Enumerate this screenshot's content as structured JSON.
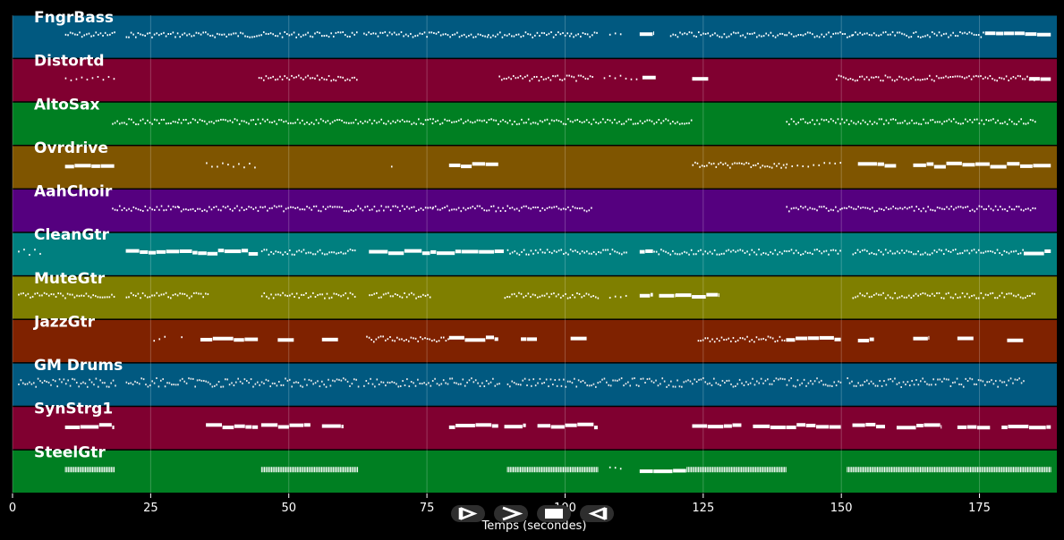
{
  "chart_data": {
    "type": "piano-roll",
    "xlabel": "Temps (secondes)",
    "xlim": [
      0,
      189
    ],
    "x_ticks": [
      0,
      25,
      50,
      75,
      100,
      125,
      150,
      175
    ],
    "grid": true,
    "tracks": [
      {
        "name": "FngrBass",
        "color": "#015980",
        "segments": [
          [
            9.5,
            18.5,
            "dense"
          ],
          [
            20.5,
            44.5,
            "dense"
          ],
          [
            44.5,
            62.5,
            "dense"
          ],
          [
            63.5,
            86,
            "dense"
          ],
          [
            86,
            101,
            "dense"
          ],
          [
            101,
            106,
            "dense"
          ],
          [
            108,
            110,
            "sparse"
          ],
          [
            113.5,
            116,
            "block"
          ],
          [
            119,
            140,
            "dense"
          ],
          [
            140,
            152,
            "dense"
          ],
          [
            152,
            176,
            "dense"
          ],
          [
            176,
            188,
            "block"
          ]
        ]
      },
      {
        "name": "Distortd",
        "color": "#800030",
        "segments": [
          [
            9.5,
            18.5,
            "sparse"
          ],
          [
            44.5,
            62.5,
            "dense"
          ],
          [
            88,
            105,
            "dense"
          ],
          [
            107,
            113,
            "sparse"
          ],
          [
            114,
            116.5,
            "block"
          ],
          [
            123,
            126,
            "block"
          ],
          [
            149,
            185,
            "dense"
          ],
          [
            184,
            188,
            "block"
          ]
        ]
      },
      {
        "name": "AltoSax",
        "color": "#007f22",
        "segments": [
          [
            18,
            30,
            "dense"
          ],
          [
            30,
            62,
            "dense"
          ],
          [
            62,
            76,
            "dense"
          ],
          [
            76,
            123,
            "dense"
          ],
          [
            140,
            150,
            "dense"
          ],
          [
            150,
            185,
            "dense"
          ]
        ]
      },
      {
        "name": "Ovrdrive",
        "color": "#7f5500",
        "segments": [
          [
            9.5,
            18.5,
            "block"
          ],
          [
            35,
            44.5,
            "sparse"
          ],
          [
            68.5,
            69,
            "sparse"
          ],
          [
            79,
            88,
            "block"
          ],
          [
            123,
            140,
            "dense"
          ],
          [
            140,
            150,
            "sparse"
          ],
          [
            153,
            160,
            "block"
          ],
          [
            163,
            169,
            "block"
          ],
          [
            169,
            188,
            "block"
          ]
        ]
      },
      {
        "name": "AahChoir",
        "color": "#55007f",
        "segments": [
          [
            18,
            30,
            "dense"
          ],
          [
            30,
            62,
            "dense"
          ],
          [
            62,
            76,
            "dense"
          ],
          [
            76,
            105,
            "dense"
          ],
          [
            140,
            150,
            "dense"
          ],
          [
            150,
            185,
            "dense"
          ]
        ]
      },
      {
        "name": "CleanGtr",
        "color": "#007f7f",
        "segments": [
          [
            1,
            5,
            "sparse"
          ],
          [
            20.5,
            44.5,
            "block"
          ],
          [
            45,
            62,
            "dense"
          ],
          [
            64.5,
            89,
            "block"
          ],
          [
            89.5,
            111,
            "dense"
          ],
          [
            113.5,
            116,
            "block"
          ],
          [
            116,
            150,
            "dense"
          ],
          [
            152,
            183,
            "dense"
          ],
          [
            183,
            188,
            "block"
          ]
        ]
      },
      {
        "name": "MuteGtr",
        "color": "#7f7f00",
        "segments": [
          [
            1,
            18.5,
            "dense"
          ],
          [
            20.5,
            35.5,
            "dense"
          ],
          [
            45,
            62,
            "dense"
          ],
          [
            64.5,
            75.5,
            "dense"
          ],
          [
            89,
            106,
            "dense"
          ],
          [
            108,
            111,
            "sparse"
          ],
          [
            113.5,
            116,
            "block"
          ],
          [
            117,
            120,
            "block"
          ],
          [
            120,
            128,
            "block"
          ],
          [
            152,
            185,
            "dense"
          ]
        ]
      },
      {
        "name": "JazzGtr",
        "color": "#7f2200",
        "segments": [
          [
            25.5,
            28,
            "sparse"
          ],
          [
            30.5,
            31,
            "sparse"
          ],
          [
            34,
            44.5,
            "block"
          ],
          [
            48,
            51,
            "block"
          ],
          [
            56,
            59,
            "block"
          ],
          [
            64,
            79,
            "dense"
          ],
          [
            79,
            88,
            "block"
          ],
          [
            92,
            95,
            "block"
          ],
          [
            101,
            104,
            "block"
          ],
          [
            124,
            140,
            "dense"
          ],
          [
            140,
            150,
            "block"
          ],
          [
            153,
            156,
            "block"
          ],
          [
            163,
            166,
            "block"
          ],
          [
            171,
            174,
            "block"
          ],
          [
            180,
            183,
            "block"
          ]
        ]
      },
      {
        "name": "GM Drums",
        "color": "#015980",
        "segments": [
          [
            1,
            18.5,
            "drums"
          ],
          [
            20.5,
            62.5,
            "drums"
          ],
          [
            63.5,
            88,
            "drums"
          ],
          [
            89.5,
            150,
            "drums"
          ],
          [
            151,
            183,
            "drums"
          ]
        ]
      },
      {
        "name": "SynStrg1",
        "color": "#800030",
        "segments": [
          [
            9.5,
            18.5,
            "block"
          ],
          [
            35,
            44.5,
            "block"
          ],
          [
            45,
            54,
            "block"
          ],
          [
            56,
            60,
            "block"
          ],
          [
            79,
            88,
            "block"
          ],
          [
            89,
            93,
            "block"
          ],
          [
            95,
            100,
            "block"
          ],
          [
            100,
            106,
            "block"
          ],
          [
            123,
            132,
            "block"
          ],
          [
            134,
            140,
            "block"
          ],
          [
            140,
            150,
            "block"
          ],
          [
            152,
            158,
            "block"
          ],
          [
            160,
            168,
            "block"
          ],
          [
            171,
            177,
            "block"
          ],
          [
            179,
            188,
            "block"
          ]
        ]
      },
      {
        "name": "SteelGtr",
        "color": "#007f22",
        "segments": [
          [
            9.5,
            18.5,
            "comb"
          ],
          [
            45,
            62.5,
            "comb"
          ],
          [
            89.5,
            106,
            "comb"
          ],
          [
            108,
            110,
            "sparse"
          ],
          [
            113.5,
            116,
            "block"
          ],
          [
            116,
            122,
            "block"
          ],
          [
            122,
            140,
            "comb"
          ],
          [
            151,
            188,
            "comb"
          ]
        ]
      }
    ]
  },
  "playback_controls": [
    {
      "name": "rewind",
      "icon": "rewind-icon"
    },
    {
      "name": "play",
      "icon": "play-icon"
    },
    {
      "name": "stop",
      "icon": "stop-icon"
    },
    {
      "name": "back",
      "icon": "back-icon"
    }
  ]
}
